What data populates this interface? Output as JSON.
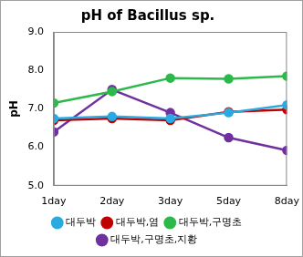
{
  "chart_data": {
    "type": "line",
    "title": "pH of Bacillus sp.",
    "y_label": "pH",
    "categories": [
      "1day",
      "2day",
      "3day",
      "5day",
      "8day"
    ],
    "series": [
      {
        "name": "대두박",
        "color": "#29aae1",
        "values": [
          6.75,
          6.8,
          6.75,
          6.9,
          7.1
        ]
      },
      {
        "name": "대두박,염",
        "color": "#c00000",
        "values": [
          6.7,
          6.75,
          6.7,
          6.92,
          6.98
        ]
      },
      {
        "name": "대두박,구명초",
        "color": "#2db84b",
        "values": [
          7.15,
          7.45,
          7.8,
          7.78,
          7.85
        ]
      },
      {
        "name": "대두박,구명초,지황",
        "color": "#7030a0",
        "values": [
          6.4,
          7.5,
          6.9,
          6.25,
          5.92
        ]
      }
    ],
    "ylim": [
      5,
      9
    ],
    "yticks": [
      {
        "value": 5,
        "label": "5.0"
      },
      {
        "value": 6,
        "label": "6.0"
      },
      {
        "value": 7,
        "label": "7.0"
      },
      {
        "value": 8,
        "label": "8.0"
      },
      {
        "value": 9,
        "label": "9.0"
      }
    ],
    "grid": false,
    "legend": "bottom",
    "marker": "circle"
  }
}
